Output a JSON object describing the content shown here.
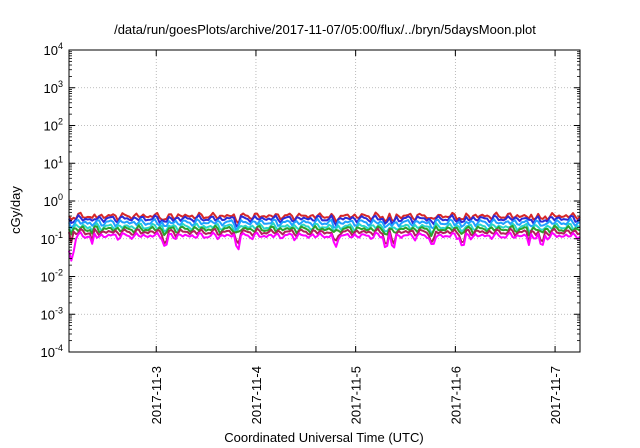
{
  "chart_data": {
    "type": "line",
    "title": "/data/run/goesPlots/archive/2017-11-07/05:00/flux/../bryn/5daysMoon.plot",
    "xlabel": "Coordinated Universal Time (UTC)",
    "ylabel": "cGy/day",
    "y_scale": "log",
    "ylim": [
      0.0001,
      10000
    ],
    "y_ticks": [
      {
        "base": "10",
        "exp": "4"
      },
      {
        "base": "10",
        "exp": "3"
      },
      {
        "base": "10",
        "exp": "2"
      },
      {
        "base": "10",
        "exp": "1"
      },
      {
        "base": "10",
        "exp": "0"
      },
      {
        "base": "10",
        "exp": "-1"
      },
      {
        "base": "10",
        "exp": "-2"
      },
      {
        "base": "10",
        "exp": "-3"
      },
      {
        "base": "10",
        "exp": "-4"
      }
    ],
    "xlim": [
      "2017-11-02T03:00",
      "2017-11-07T06:00"
    ],
    "x_ticks": [
      {
        "label": "2017-11-3",
        "t": "2017-11-03T00:00"
      },
      {
        "label": "2017-11-4",
        "t": "2017-11-04T00:00"
      },
      {
        "label": "2017-11-5",
        "t": "2017-11-05T00:00"
      },
      {
        "label": "2017-11-6",
        "t": "2017-11-06T00:00"
      },
      {
        "label": "2017-11-7",
        "t": "2017-11-07T00:00"
      }
    ],
    "grid": true,
    "series": [
      {
        "color": "#d62728",
        "level": 0.4
      },
      {
        "color": "#2b2bd6",
        "level": 0.34
      },
      {
        "color": "#1fa0ff",
        "level": 0.27
      },
      {
        "color": "#27d6c8",
        "level": 0.21
      },
      {
        "color": "#2ca02c",
        "level": 0.18
      },
      {
        "color": "#b0205a",
        "level": 0.15
      },
      {
        "color": "#ff00ff",
        "level": 0.12
      }
    ]
  }
}
